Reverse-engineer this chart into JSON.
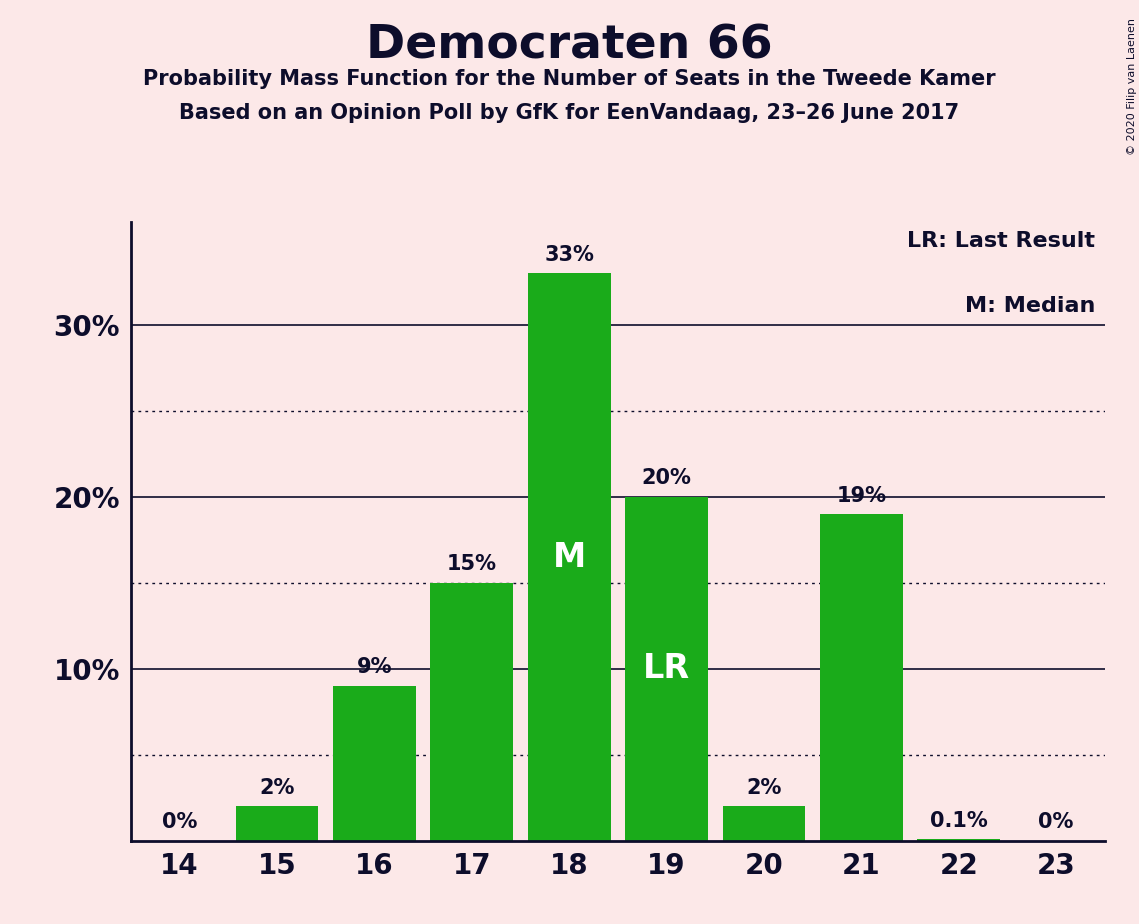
{
  "title": "Democraten 66",
  "subtitle1": "Probability Mass Function for the Number of Seats in the Tweede Kamer",
  "subtitle2": "Based on an Opinion Poll by GfK for EenVandaag, 23–26 June 2017",
  "copyright": "© 2020 Filip van Laenen",
  "seats": [
    14,
    15,
    16,
    17,
    18,
    19,
    20,
    21,
    22,
    23
  ],
  "probabilities": [
    0.0,
    2.0,
    9.0,
    15.0,
    33.0,
    20.0,
    2.0,
    19.0,
    0.1,
    0.0
  ],
  "bar_color": "#1aab1a",
  "background_color": "#fce8e8",
  "text_color": "#0d0d2b",
  "bar_labels": [
    "0%",
    "2%",
    "9%",
    "15%",
    "33%",
    "20%",
    "2%",
    "19%",
    "0.1%",
    "0%"
  ],
  "median_seat": 18,
  "last_result_seat": 19,
  "legend_text1": "LR: Last Result",
  "legend_text2": "M: Median",
  "yticks": [
    0,
    10,
    20,
    30
  ],
  "ytick_labels": [
    "",
    "10%",
    "20%",
    "30%"
  ],
  "dotted_yticks": [
    5,
    15,
    25
  ],
  "ylim": [
    0,
    36
  ]
}
